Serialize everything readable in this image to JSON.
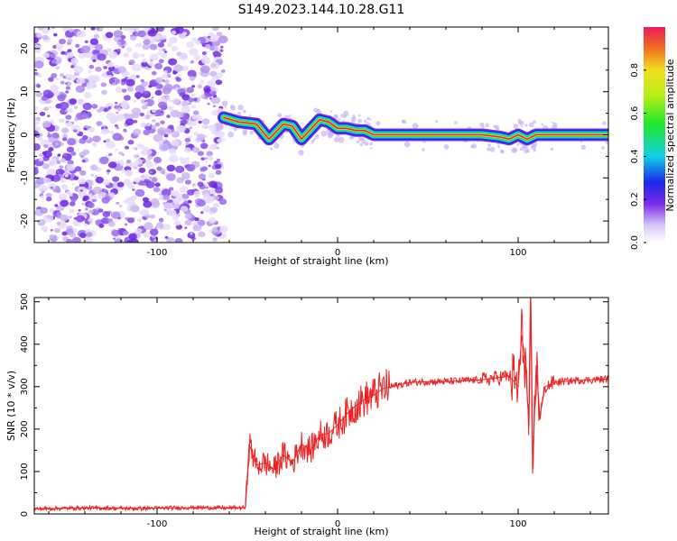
{
  "title": "S149.2023.144.10.28.G11",
  "chart_data": [
    {
      "type": "heatmap",
      "xlabel": "Height of straight line (km)",
      "ylabel": "Frequency (Hz)",
      "xlim": [
        -168,
        150
      ],
      "ylim": [
        -25,
        25
      ],
      "xticks": [
        -100,
        0,
        100
      ],
      "yticks": [
        -20,
        -10,
        0,
        10,
        20
      ],
      "colorbar": {
        "label": "Normalized spectral amplitude",
        "range": [
          0,
          1
        ],
        "ticks": [
          0.0,
          0.2,
          0.4,
          0.6,
          0.8
        ]
      },
      "noise_region_x": [
        -168,
        -63
      ],
      "signal_line": {
        "x": [
          -63,
          -55,
          -45,
          -38,
          -30,
          -25,
          -20,
          -10,
          -5,
          0,
          5,
          10,
          15,
          20,
          50,
          80,
          90,
          95,
          100,
          105,
          110,
          150
        ],
        "y": [
          4,
          3,
          2.5,
          -1,
          2.5,
          2,
          -1,
          3.5,
          3,
          1.5,
          1.5,
          1,
          1,
          0,
          0,
          0,
          -0.5,
          -1,
          0,
          -1,
          0,
          0
        ]
      }
    },
    {
      "type": "line",
      "xlabel": "Height of straight line (km)",
      "ylabel": "SNR (10 * v/v)",
      "xlim": [
        -168,
        150
      ],
      "ylim": [
        0,
        510
      ],
      "xticks": [
        -100,
        0,
        100
      ],
      "yticks": [
        0,
        100,
        200,
        300,
        400,
        500
      ],
      "series": [
        {
          "color": "#ee2222",
          "x": [
            -168,
            -140,
            -110,
            -80,
            -60,
            -51,
            -49,
            -45,
            -40,
            -35,
            -30,
            -25,
            -20,
            -15,
            -10,
            -5,
            0,
            5,
            10,
            15,
            20,
            25,
            30,
            40,
            50,
            60,
            70,
            80,
            90,
            95,
            100,
            102,
            104,
            105,
            106,
            107,
            108,
            110,
            112,
            115,
            120,
            130,
            140,
            150
          ],
          "y": [
            12,
            14,
            13,
            15,
            14,
            15,
            165,
            115,
            120,
            105,
            140,
            120,
            165,
            150,
            185,
            190,
            210,
            235,
            255,
            270,
            280,
            295,
            300,
            310,
            312,
            312,
            314,
            316,
            322,
            325,
            300,
            420,
            360,
            280,
            205,
            500,
            95,
            350,
            230,
            300,
            310,
            314,
            316,
            318
          ]
        }
      ]
    }
  ]
}
